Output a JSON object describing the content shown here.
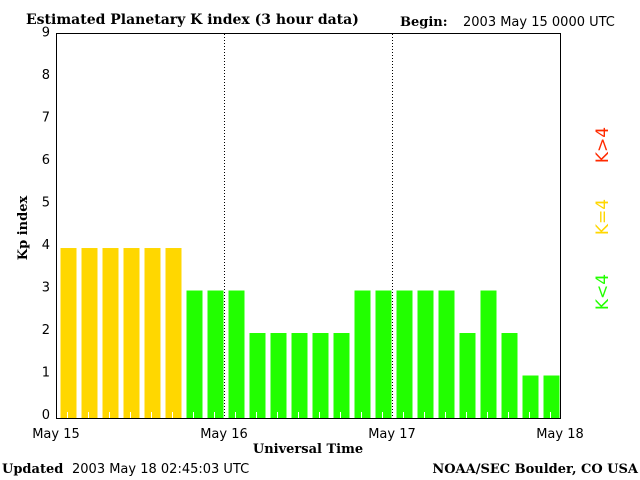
{
  "chart_data": {
    "type": "bar",
    "title": "Estimated Planetary K index (3 hour data)",
    "begin_label": "Begin:",
    "begin_value": "2003 May 15 0000 UTC",
    "xlabel": "Universal Time",
    "ylabel": "Kp index",
    "ylim": [
      0,
      9
    ],
    "yticks": [
      "0",
      "1",
      "2",
      "3",
      "4",
      "5",
      "6",
      "7",
      "8",
      "9"
    ],
    "xticks": [
      "May 15",
      "May 16",
      "May 17",
      "May 18"
    ],
    "values": [
      4,
      4,
      4,
      4,
      4,
      4,
      3,
      3,
      3,
      2,
      2,
      2,
      2,
      2,
      3,
      3,
      3,
      3,
      3,
      2,
      3,
      2,
      1,
      1
    ],
    "colors": {
      "low": "#22ff00",
      "mid": "#ffd700",
      "high": "#ff2a00"
    },
    "legend": [
      {
        "label": "K<4",
        "color": "#22ff00"
      },
      {
        "label": "K=4",
        "color": "#ffd700"
      },
      {
        "label": "K>4",
        "color": "#ff2a00"
      }
    ],
    "legend_placement": "right"
  },
  "footer": {
    "updated_label": "Updated",
    "updated_value": "2003 May 18 02:45:03 UTC",
    "source": "NOAA/SEC Boulder, CO USA"
  }
}
